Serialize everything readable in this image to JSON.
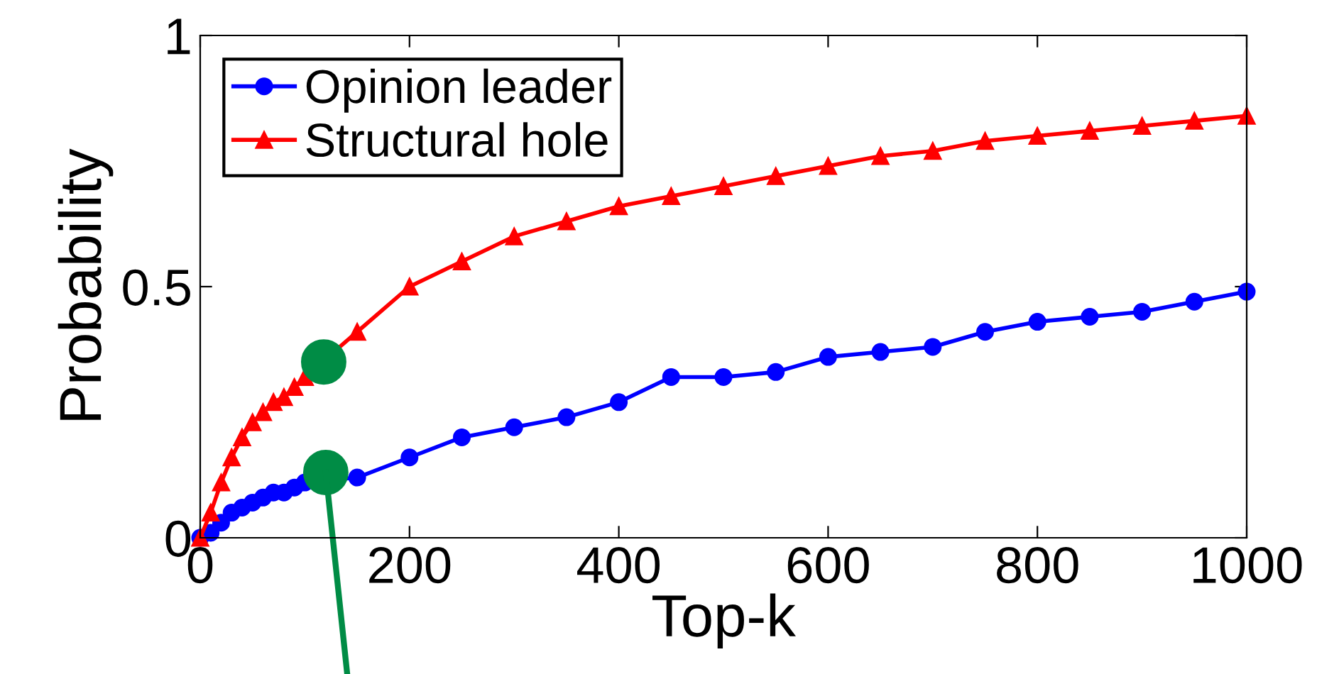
{
  "chart_data": {
    "type": "line",
    "xlabel": "Top-k",
    "ylabel": "Probability",
    "x": [
      0,
      10,
      20,
      30,
      40,
      50,
      60,
      70,
      80,
      90,
      100,
      150,
      200,
      250,
      300,
      350,
      400,
      450,
      500,
      550,
      600,
      650,
      700,
      750,
      800,
      850,
      900,
      950,
      1000
    ],
    "series": [
      {
        "name": "Opinion leader",
        "color": "#0000ff",
        "marker": "circle",
        "values": [
          0,
          0.01,
          0.03,
          0.05,
          0.06,
          0.07,
          0.08,
          0.09,
          0.09,
          0.1,
          0.11,
          0.12,
          0.16,
          0.2,
          0.22,
          0.24,
          0.27,
          0.32,
          0.32,
          0.33,
          0.36,
          0.37,
          0.38,
          0.41,
          0.43,
          0.44,
          0.45,
          0.47,
          0.49
        ]
      },
      {
        "name": "Structural hole",
        "color": "#ff0000",
        "marker": "triangle",
        "values": [
          0,
          0.05,
          0.11,
          0.16,
          0.2,
          0.23,
          0.25,
          0.27,
          0.28,
          0.3,
          0.32,
          0.41,
          0.5,
          0.55,
          0.6,
          0.63,
          0.66,
          0.68,
          0.7,
          0.72,
          0.74,
          0.76,
          0.77,
          0.79,
          0.8,
          0.81,
          0.82,
          0.83,
          0.84
        ]
      }
    ],
    "xlim": [
      0,
      1000
    ],
    "xticks": [
      0,
      200,
      400,
      600,
      800,
      1000
    ],
    "ylim": [
      0,
      1
    ],
    "yticks": [
      0,
      0.5,
      1
    ],
    "grid": false,
    "legend": "top left",
    "line_style": "solid"
  }
}
